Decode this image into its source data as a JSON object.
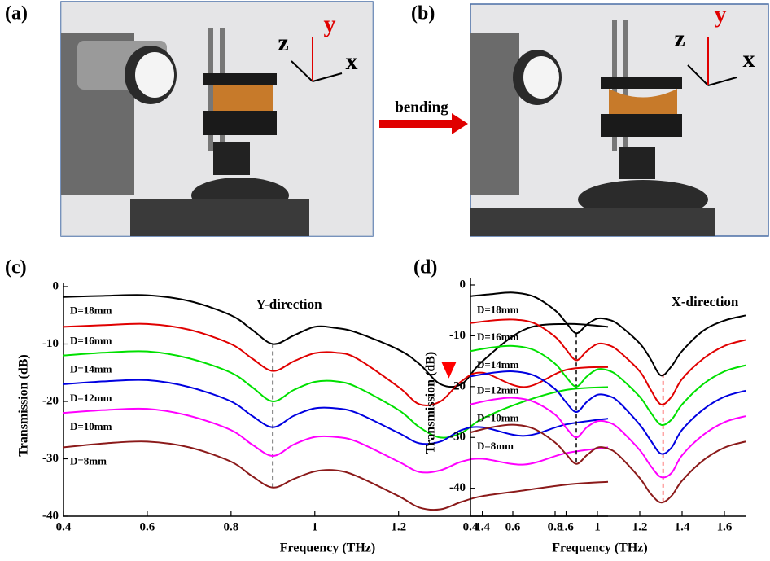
{
  "panels": {
    "a": "(a)",
    "b": "(b)",
    "c": "(c)",
    "d": "(d)"
  },
  "photos": {
    "axes": {
      "z": "z",
      "y": "y",
      "x": "x"
    },
    "arrow_label": "bending"
  },
  "chart_data": [
    {
      "type": "line",
      "annotation": "Y-direction",
      "xlabel": "Frequency (THz)",
      "ylabel": "Transmission (dB)",
      "xlim": [
        0.4,
        1.7
      ],
      "ylim": [
        -40,
        0
      ],
      "xticks": [
        0.4,
        0.6,
        0.8,
        1.0,
        1.2,
        1.4,
        1.6
      ],
      "yticks": [
        0,
        -10,
        -20,
        -30,
        -40
      ],
      "x": [
        0.4,
        0.5,
        0.6,
        0.7,
        0.8,
        0.85,
        0.9,
        0.95,
        1.0,
        1.05,
        1.1,
        1.2,
        1.25,
        1.3,
        1.35,
        1.4,
        1.5,
        1.6,
        1.7
      ],
      "series": [
        {
          "name": "D=18mm",
          "color": "#000000",
          "values": [
            -1.8,
            -1.6,
            -1.5,
            -2.5,
            -5,
            -7.5,
            -10,
            -8.5,
            -7,
            -7.2,
            -8,
            -11,
            -13.5,
            -17,
            -17,
            -13,
            -7.5,
            -6.5,
            -7
          ]
        },
        {
          "name": "D=16mm",
          "color": "#e00000",
          "values": [
            -7,
            -6.7,
            -6.5,
            -7.5,
            -10,
            -12.5,
            -14.7,
            -13,
            -11.6,
            -11.5,
            -12.5,
            -17.5,
            -20.5,
            -20,
            -16.5,
            -15,
            -17.5,
            -14.5,
            -14
          ]
        },
        {
          "name": "D=14mm",
          "color": "#00e000",
          "values": [
            -12,
            -11.5,
            -11.3,
            -12.5,
            -15,
            -17.5,
            -20,
            -18,
            -16.6,
            -16.5,
            -17.5,
            -21.5,
            -24.5,
            -26.3,
            -25.5,
            -23,
            -20,
            -18,
            -17.5
          ]
        },
        {
          "name": "D=12mm",
          "color": "#0000e0",
          "values": [
            -17,
            -16.5,
            -16.3,
            -17.5,
            -20,
            -22.5,
            -24.5,
            -22.5,
            -21.2,
            -21.2,
            -22,
            -25.5,
            -27.3,
            -27,
            -25,
            -24.5,
            -26,
            -24,
            -23
          ]
        },
        {
          "name": "D=10mm",
          "color": "#ff00ff",
          "values": [
            -22,
            -21.5,
            -21.3,
            -22.5,
            -25,
            -27.5,
            -29.5,
            -27.5,
            -26.2,
            -26.2,
            -27,
            -30.5,
            -32.3,
            -32,
            -30.5,
            -30,
            -31,
            -29,
            -28
          ]
        },
        {
          "name": "D=8mm",
          "color": "#8b1a1a",
          "values": [
            -28,
            -27.3,
            -27,
            -28,
            -30.5,
            -33,
            -35,
            -33.5,
            -32.2,
            -32,
            -33,
            -36.5,
            -38.5,
            -38.8,
            -37.5,
            -36.5,
            -35.5,
            -34.5,
            -34
          ]
        }
      ],
      "ref_lines": [
        {
          "x": 0.9,
          "color": "#000000"
        }
      ],
      "marker": {
        "x": 1.32,
        "y": -16,
        "color": "#ff0000"
      }
    },
    {
      "type": "line",
      "annotation": "X-direction",
      "xlabel": "Frequency (THz)",
      "ylabel": "Transmission (dB)",
      "xlim": [
        0.4,
        1.7
      ],
      "ylim": [
        -45.5,
        0.8
      ],
      "xticks": [
        0.4,
        0.6,
        0.8,
        1.0,
        1.2,
        1.4,
        1.6
      ],
      "yticks": [
        0,
        -10,
        -20,
        -30,
        -40
      ],
      "x": [
        0.4,
        0.5,
        0.6,
        0.7,
        0.8,
        0.85,
        0.9,
        0.95,
        1.0,
        1.05,
        1.1,
        1.2,
        1.25,
        1.3,
        1.35,
        1.4,
        1.5,
        1.6,
        1.7
      ],
      "series": [
        {
          "name": "D=18mm",
          "color": "#000000",
          "values": [
            -2.2,
            -1.8,
            -1.5,
            -2.3,
            -5,
            -7.3,
            -9.5,
            -7.8,
            -6.6,
            -6.8,
            -7.8,
            -11.5,
            -14.5,
            -17.8,
            -16,
            -13,
            -9,
            -7,
            -6
          ]
        },
        {
          "name": "D=16mm",
          "color": "#e00000",
          "values": [
            -7.5,
            -7,
            -6.8,
            -7.5,
            -10.2,
            -12.6,
            -14.8,
            -13,
            -11.6,
            -11.8,
            -13,
            -17,
            -20.5,
            -23.5,
            -22,
            -18.5,
            -14.5,
            -12,
            -10.8
          ]
        },
        {
          "name": "D=14mm",
          "color": "#00e000",
          "values": [
            -13,
            -12.3,
            -12,
            -12.8,
            -15.5,
            -18,
            -20,
            -18,
            -16.6,
            -16.8,
            -18,
            -22,
            -25,
            -27.5,
            -26.5,
            -23.5,
            -19.5,
            -17,
            -15.8
          ]
        },
        {
          "name": "D=12mm",
          "color": "#0000e0",
          "values": [
            -18,
            -17.3,
            -17,
            -17.8,
            -20.5,
            -23,
            -25,
            -23,
            -21.6,
            -21.8,
            -23,
            -27.5,
            -30.5,
            -33.2,
            -32,
            -28.5,
            -24.5,
            -22,
            -20.8
          ]
        },
        {
          "name": "D=10mm",
          "color": "#ff00ff",
          "values": [
            -23.5,
            -22.6,
            -22.2,
            -23,
            -25.5,
            -28,
            -30,
            -28,
            -26.8,
            -27,
            -28.2,
            -32.5,
            -35.5,
            -37.8,
            -37,
            -33.5,
            -29.5,
            -27,
            -25.8
          ]
        },
        {
          "name": "D=8mm",
          "color": "#8b1a1a",
          "values": [
            -29,
            -28,
            -27.5,
            -28.3,
            -31,
            -33.2,
            -35.2,
            -33.5,
            -32,
            -32.2,
            -33.5,
            -38,
            -41,
            -42.8,
            -41.5,
            -38.5,
            -34.5,
            -32,
            -30.8
          ]
        }
      ],
      "ref_lines": [
        {
          "x": 0.9,
          "color": "#000000"
        },
        {
          "x": 1.31,
          "color": "#ff0000"
        }
      ]
    }
  ]
}
